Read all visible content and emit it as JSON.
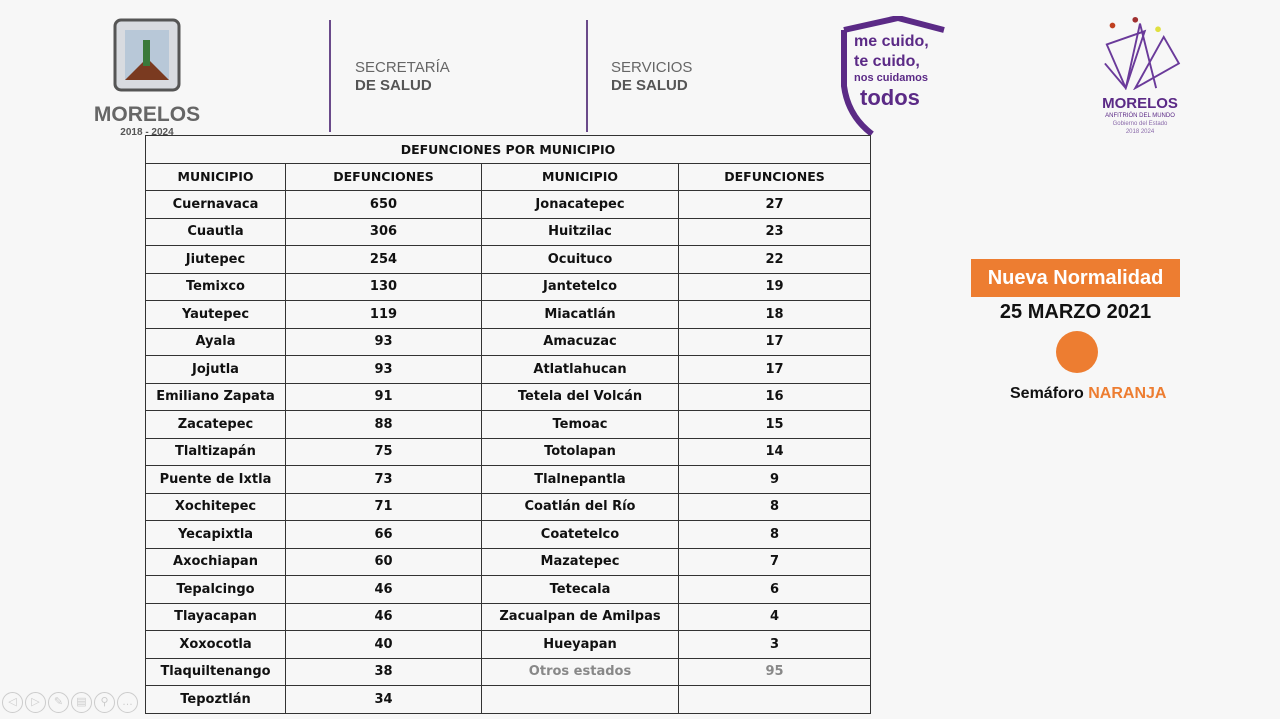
{
  "header": {
    "state_logo": {
      "name": "MORELOS",
      "years": "2018 - 2024"
    },
    "dept1": {
      "line1": "SECRETARÍA",
      "line2": "DE SALUD"
    },
    "dept2": {
      "line1": "SERVICIOS",
      "line2": "DE SALUD"
    },
    "campaign": {
      "line1": "me cuido,",
      "line2": "te cuido,",
      "line3": "nos cuidamos",
      "line4": "todos"
    },
    "gov_logo": {
      "name": "MORELOS",
      "tagline": "ANFITRIÓN DEL MUNDO",
      "sub": "Gobierno del Estado",
      "years": "2018 2024"
    }
  },
  "table": {
    "title": "DEFUNCIONES POR MUNICIPIO",
    "headers": [
      "MUNICIPIO",
      "DEFUNCIONES",
      "MUNICIPIO",
      "DEFUNCIONES"
    ],
    "left": [
      [
        "Cuernavaca",
        "650"
      ],
      [
        "Cuautla",
        "306"
      ],
      [
        "Jiutepec",
        "254"
      ],
      [
        "Temixco",
        "130"
      ],
      [
        "Yautepec",
        "119"
      ],
      [
        "Ayala",
        "93"
      ],
      [
        "Jojutla",
        "93"
      ],
      [
        "Emiliano Zapata",
        "91"
      ],
      [
        "Zacatepec",
        "88"
      ],
      [
        "Tlaltizapán",
        "75"
      ],
      [
        "Puente de Ixtla",
        "73"
      ],
      [
        "Xochitepec",
        "71"
      ],
      [
        "Yecapixtla",
        "66"
      ],
      [
        "Axochiapan",
        "60"
      ],
      [
        "Tepalcingo",
        "46"
      ],
      [
        "Tlayacapan",
        "46"
      ],
      [
        "Xoxocotla",
        "40"
      ],
      [
        "Tlaquiltenango",
        "38"
      ],
      [
        "Tepoztlán",
        "34"
      ]
    ],
    "right": [
      [
        "Jonacatepec",
        "27"
      ],
      [
        "Huitzilac",
        "23"
      ],
      [
        "Ocuituco",
        "22"
      ],
      [
        "Jantetelco",
        "19"
      ],
      [
        "Miacatlán",
        "18"
      ],
      [
        "Amacuzac",
        "17"
      ],
      [
        "Atlatlahucan",
        "17"
      ],
      [
        "Tetela del Volcán",
        "16"
      ],
      [
        "Temoac",
        "15"
      ],
      [
        "Totolapan",
        "14"
      ],
      [
        "Tlalnepantla",
        "9"
      ],
      [
        "Coatlán del Río",
        "8"
      ],
      [
        "Coatetelco",
        "8"
      ],
      [
        "Mazatepec",
        "7"
      ],
      [
        "Tetecala",
        "6"
      ],
      [
        "Zacualpan de Amilpas",
        "4"
      ],
      [
        "Hueyapan",
        "3"
      ],
      [
        "Otros estados",
        "95"
      ],
      [
        "",
        ""
      ]
    ]
  },
  "status": {
    "badge": "Nueva Normalidad",
    "date": "25 MARZO 2021",
    "semaforo_label": "Semáforo",
    "semaforo_value": "NARANJA",
    "color": "#ed7d31"
  },
  "controls": [
    "previous-icon",
    "next-icon",
    "pen-icon",
    "slides-icon",
    "zoom-icon",
    "more-icon"
  ]
}
